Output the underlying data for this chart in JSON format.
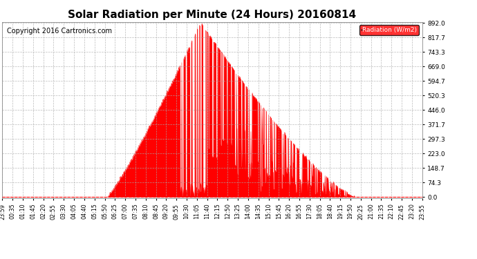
{
  "title": "Solar Radiation per Minute (24 Hours) 20160814",
  "copyright_text": "Copyright 2016 Cartronics.com",
  "legend_label": "Radiation (W/m2)",
  "yticks": [
    0.0,
    74.3,
    148.7,
    223.0,
    297.3,
    371.7,
    446.0,
    520.3,
    594.7,
    669.0,
    743.3,
    817.7,
    892.0
  ],
  "ymin": 0.0,
  "ymax": 892.0,
  "fill_color": "#FF0000",
  "line_color": "#FF0000",
  "background_color": "#FFFFFF",
  "grid_color": "#AAAAAA",
  "title_fontsize": 11,
  "copyright_fontsize": 7,
  "dashed_zero_color": "#FF0000",
  "xtick_labels": [
    "23:59",
    "00:35",
    "01:10",
    "01:45",
    "02:20",
    "02:55",
    "03:30",
    "04:05",
    "04:40",
    "05:15",
    "05:50",
    "06:25",
    "07:00",
    "07:35",
    "08:10",
    "08:45",
    "09:20",
    "09:55",
    "10:30",
    "11:05",
    "11:40",
    "12:15",
    "12:50",
    "13:25",
    "14:00",
    "14:35",
    "15:10",
    "15:45",
    "16:20",
    "16:55",
    "17:30",
    "18:05",
    "18:40",
    "19:15",
    "19:50",
    "20:25",
    "21:00",
    "21:35",
    "22:10",
    "22:45",
    "23:20",
    "23:55"
  ],
  "sunrise_min": 358,
  "sunset_min": 1210,
  "peak_min": 680,
  "peak_val": 892.0,
  "n_minutes": 1440
}
